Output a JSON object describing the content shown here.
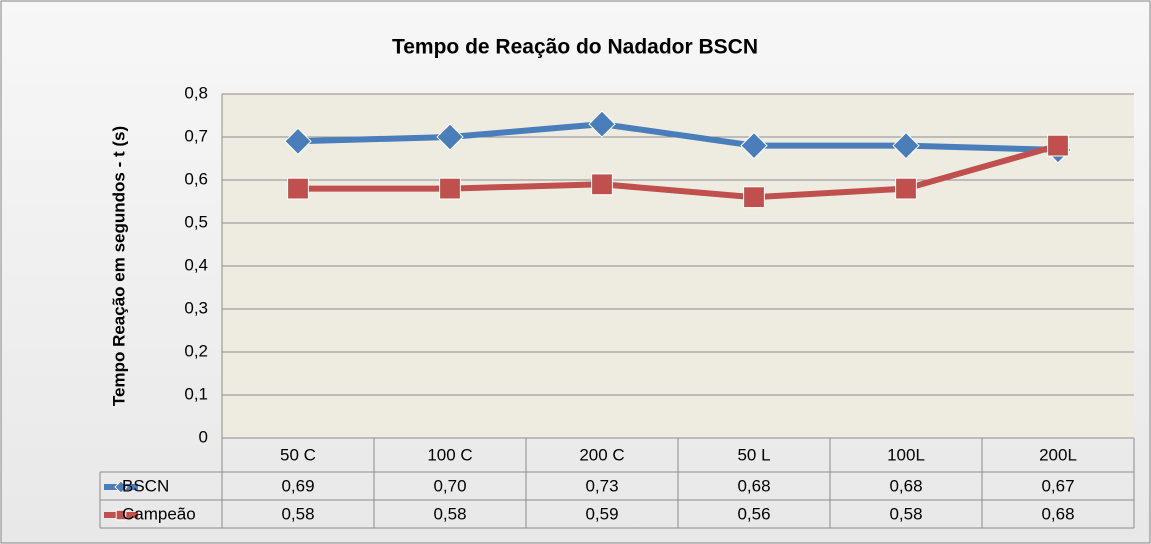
{
  "chart_data": {
    "type": "line",
    "title": "Tempo de Reação do Nadador BSCN",
    "y_label": "Tempo Reação em segundos - t (s)",
    "categories": [
      "50 C",
      "100 C",
      "200 C",
      "50 L",
      "100L",
      "200L"
    ],
    "series": [
      {
        "name": "BSCN",
        "color": "#4a7ebb",
        "marker": "diamond",
        "values": [
          0.69,
          0.7,
          0.73,
          0.68,
          0.68,
          0.67
        ],
        "value_labels": [
          "0,69",
          "0,70",
          "0,73",
          "0,68",
          "0,68",
          "0,67"
        ]
      },
      {
        "name": "Campeão",
        "color": "#c0504d",
        "marker": "square",
        "values": [
          0.58,
          0.58,
          0.59,
          0.56,
          0.58,
          0.68
        ],
        "value_labels": [
          "0,58",
          "0,58",
          "0,59",
          "0,56",
          "0,58",
          "0,68"
        ]
      }
    ],
    "ylim": [
      0,
      0.8
    ],
    "yticks": [
      0,
      {
        "value": 0.1,
        "label": "0,1"
      },
      {
        "value": 0.2,
        "label": "0,2"
      },
      {
        "value": 0.3,
        "label": "0,3"
      },
      {
        "value": 0.4,
        "label": "0,4"
      },
      {
        "value": 0.5,
        "label": "0,5"
      },
      {
        "value": 0.6,
        "label": "0,6"
      },
      {
        "value": 0.7,
        "label": "0,7"
      },
      {
        "value": 0.8,
        "label": "0,8"
      }
    ],
    "grid": true
  }
}
